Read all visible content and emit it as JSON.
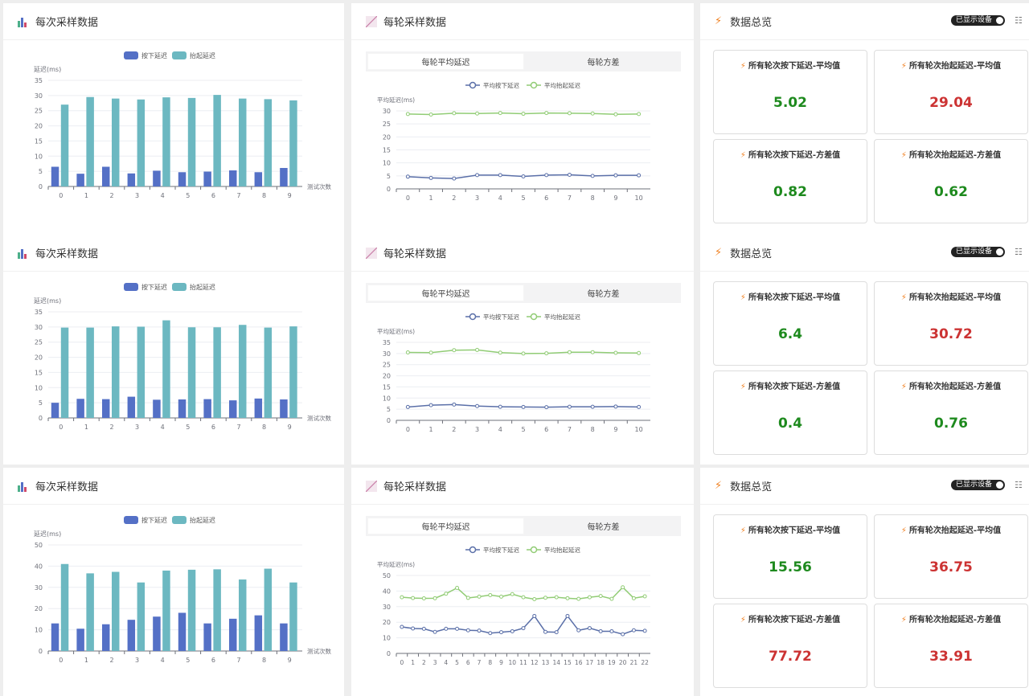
{
  "colors": {
    "press": "#5470c6",
    "lift": "#6cb8c1",
    "line_press": "#5a6fa8",
    "line_lift": "#91cc75",
    "good": "#1e8a1e",
    "bad": "#cc3333"
  },
  "labels": {
    "bar_title": "每次采样数据",
    "line_title": "每轮采样数据",
    "summary_title": "数据总览",
    "bar_legend": [
      "按下延迟",
      "抬起延迟"
    ],
    "bar_ylabel": "延迟(ms)",
    "bar_xlabel": "测试次数",
    "tabs": [
      "每轮平均延迟",
      "每轮方差"
    ],
    "line_legend": [
      "平均按下延迟",
      "平均抬起延迟"
    ],
    "line_ylabel": "平均延迟(ms)",
    "toggle": "已显示设备",
    "card_titles": [
      "所有轮次按下延迟-平均值",
      "所有轮次抬起延迟-平均值",
      "所有轮次按下延迟-方差值",
      "所有轮次抬起延迟-方差值"
    ]
  },
  "chart_data": [
    {
      "type": "bar",
      "categories": [
        "0",
        "1",
        "2",
        "3",
        "4",
        "5",
        "6",
        "7",
        "8",
        "9"
      ],
      "ylim": [
        0,
        35
      ],
      "yticks": [
        0,
        5,
        10,
        15,
        20,
        25,
        30,
        35
      ],
      "series": [
        {
          "name": "按下延迟",
          "values": [
            6.5,
            4.2,
            6.5,
            4.3,
            5.2,
            4.7,
            4.9,
            5.3,
            4.7,
            6.1
          ]
        },
        {
          "name": "抬起延迟",
          "values": [
            27,
            29.5,
            29,
            28.7,
            29.4,
            29.2,
            30.2,
            29,
            28.8,
            28.4
          ]
        }
      ]
    },
    {
      "type": "line",
      "categories": [
        "0",
        "1",
        "2",
        "3",
        "4",
        "5",
        "6",
        "7",
        "8",
        "9",
        "10"
      ],
      "ylim": [
        0,
        30
      ],
      "yticks": [
        0,
        5,
        10,
        15,
        20,
        25,
        30
      ],
      "series": [
        {
          "name": "平均按下延迟",
          "values": [
            4.7,
            4.2,
            4,
            5.3,
            5.3,
            4.8,
            5.3,
            5.4,
            5,
            5.2,
            5.2
          ]
        },
        {
          "name": "平均抬起延迟",
          "values": [
            28.8,
            28.6,
            29.1,
            29,
            29.2,
            28.9,
            29.2,
            29.1,
            29,
            28.7,
            28.8
          ]
        }
      ]
    },
    {
      "type": "bar",
      "categories": [
        "0",
        "1",
        "2",
        "3",
        "4",
        "5",
        "6",
        "7",
        "8",
        "9"
      ],
      "ylim": [
        0,
        35
      ],
      "yticks": [
        0,
        5,
        10,
        15,
        20,
        25,
        30,
        35
      ],
      "series": [
        {
          "name": "按下延迟",
          "values": [
            5,
            6.3,
            6.2,
            7,
            6,
            6.1,
            6.2,
            5.8,
            6.4,
            6.1
          ]
        },
        {
          "name": "抬起延迟",
          "values": [
            29.8,
            29.8,
            30.2,
            30.1,
            32.2,
            29.9,
            29.9,
            30.7,
            29.8,
            30.2
          ]
        }
      ]
    },
    {
      "type": "line",
      "categories": [
        "0",
        "1",
        "2",
        "3",
        "4",
        "5",
        "6",
        "7",
        "8",
        "9",
        "10"
      ],
      "ylim": [
        0,
        35
      ],
      "yticks": [
        0,
        5,
        10,
        15,
        20,
        25,
        30,
        35
      ],
      "series": [
        {
          "name": "平均按下延迟",
          "values": [
            6,
            6.8,
            7.1,
            6.4,
            6.1,
            6,
            5.9,
            6.1,
            6.1,
            6.2,
            6
          ]
        },
        {
          "name": "平均抬起延迟",
          "values": [
            30.5,
            30.4,
            31.5,
            31.6,
            30.4,
            30,
            30.1,
            30.6,
            30.6,
            30.3,
            30.2
          ]
        }
      ]
    },
    {
      "type": "bar",
      "categories": [
        "0",
        "1",
        "2",
        "3",
        "4",
        "5",
        "6",
        "7",
        "8",
        "9"
      ],
      "ylim": [
        0,
        50
      ],
      "yticks": [
        0,
        10,
        20,
        30,
        40,
        50
      ],
      "series": [
        {
          "name": "按下延迟",
          "values": [
            13,
            10.5,
            12.6,
            14.7,
            16.2,
            18,
            13,
            15.2,
            16.8,
            13
          ]
        },
        {
          "name": "抬起延迟",
          "values": [
            41,
            36.6,
            37.3,
            32.3,
            37.9,
            38.3,
            38.5,
            33.7,
            38.8,
            32.3
          ]
        }
      ]
    },
    {
      "type": "line",
      "categories": [
        "0",
        "1",
        "2",
        "3",
        "4",
        "5",
        "6",
        "7",
        "8",
        "9",
        "10",
        "11",
        "12",
        "13",
        "14",
        "15",
        "16",
        "17",
        "18",
        "19",
        "20",
        "21",
        "22"
      ],
      "ylim": [
        0,
        50
      ],
      "yticks": [
        0,
        10,
        20,
        30,
        40,
        50
      ],
      "series": [
        {
          "name": "平均按下延迟",
          "values": [
            17,
            16,
            15.8,
            13.8,
            15.8,
            15.8,
            14.8,
            14.6,
            13,
            13.6,
            14.2,
            16.2,
            24,
            13.8,
            13.6,
            24,
            14.8,
            16.2,
            14.2,
            14.2,
            12.3,
            14.8,
            14.5
          ]
        },
        {
          "name": "平均抬起延迟",
          "values": [
            36,
            35.5,
            35.3,
            35.4,
            38.3,
            42,
            35.6,
            36.4,
            37.4,
            36.4,
            38,
            36,
            34.8,
            35.7,
            36,
            35.4,
            35,
            36,
            36.8,
            35,
            42.4,
            35.4,
            36.6
          ]
        }
      ]
    }
  ],
  "summaries": [
    {
      "values": [
        {
          "v": "5.02",
          "s": "good"
        },
        {
          "v": "29.04",
          "s": "bad"
        },
        {
          "v": "0.82",
          "s": "good"
        },
        {
          "v": "0.62",
          "s": "good"
        }
      ]
    },
    {
      "values": [
        {
          "v": "6.4",
          "s": "good"
        },
        {
          "v": "30.72",
          "s": "bad"
        },
        {
          "v": "0.4",
          "s": "good"
        },
        {
          "v": "0.76",
          "s": "good"
        }
      ]
    },
    {
      "values": [
        {
          "v": "15.56",
          "s": "good"
        },
        {
          "v": "36.75",
          "s": "bad"
        },
        {
          "v": "77.72",
          "s": "bad"
        },
        {
          "v": "33.91",
          "s": "bad"
        }
      ]
    }
  ]
}
